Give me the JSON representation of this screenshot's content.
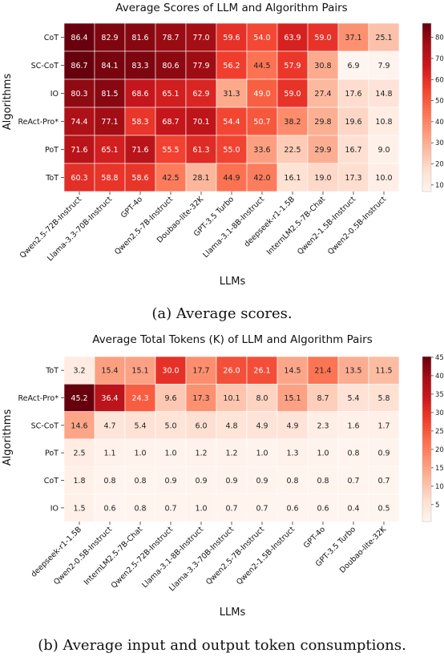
{
  "chart_data": [
    {
      "type": "heatmap",
      "title": "Average Scores of LLM and Algorithm Pairs",
      "xlabel": "LLMs",
      "ylabel": "Algorithms",
      "caption": "(a) Average scores.",
      "rows": [
        "CoT",
        "SC-CoT",
        "IO",
        "ReAct-Pro*",
        "PoT",
        "ToT"
      ],
      "columns": [
        "Qwen2.5-72B-Instruct",
        "Llama-3.3-70B-Instruct",
        "GPT-4o",
        "Qwen2.5-7B-Instruct",
        "Doubao-lite-32K",
        "GPT-3.5 Turbo",
        "Llama-3.1-8B-Instruct",
        "deepseek-r1-1.5B",
        "InternLM2.5-7B-Chat",
        "Qwen2-1.5B-Instruct",
        "Qwen2-0.5B-Instruct"
      ],
      "values": [
        [
          86.4,
          82.9,
          81.6,
          78.7,
          77.0,
          59.6,
          54.0,
          63.9,
          59.0,
          37.1,
          25.1
        ],
        [
          86.7,
          84.1,
          83.3,
          80.6,
          77.9,
          56.2,
          44.5,
          57.9,
          30.8,
          6.9,
          7.9
        ],
        [
          80.3,
          81.5,
          68.6,
          65.1,
          62.9,
          31.3,
          49.0,
          59.0,
          27.4,
          17.6,
          14.8
        ],
        [
          74.4,
          77.1,
          58.3,
          68.7,
          70.1,
          54.4,
          50.7,
          38.2,
          29.8,
          19.6,
          10.8
        ],
        [
          71.6,
          65.1,
          71.6,
          55.5,
          61.3,
          55.0,
          33.6,
          22.5,
          29.9,
          16.7,
          9.0
        ],
        [
          60.3,
          58.8,
          58.6,
          42.5,
          28.1,
          44.9,
          42.0,
          16.1,
          19.0,
          17.3,
          10.0
        ]
      ],
      "colorbar": {
        "min": 6.9,
        "max": 86.7,
        "ticks": [
          "10",
          "20",
          "30",
          "40",
          "50",
          "60",
          "70",
          "80"
        ],
        "tick_values": [
          10,
          20,
          30,
          40,
          50,
          60,
          70,
          80
        ]
      }
    },
    {
      "type": "heatmap",
      "title": "Average Total Tokens (K) of LLM and Algorithm Pairs",
      "xlabel": "LLMs",
      "ylabel": "Algorithms",
      "caption": "(b) Average input and output token consumptions.",
      "rows": [
        "ToT",
        "ReAct-Pro*",
        "SC-CoT",
        "PoT",
        "CoT",
        "IO"
      ],
      "columns": [
        "deepseek-r1-1.5B",
        "Qwen2-0.5B-Instruct",
        "InternLM2.5-7B-Chat",
        "Qwen2.5-72B-Instruct",
        "Llama-3.1-8B-Instruct",
        "Llama-3.3-70B-Instruct",
        "Qwen2.5-7B-Instruct",
        "Qwen2-1.5B-Instruct",
        "GPT-4o",
        "GPT-3.5 Turbo",
        "Doubao-lite-32K"
      ],
      "values": [
        [
          3.2,
          15.4,
          15.1,
          30.0,
          17.7,
          26.0,
          26.1,
          14.5,
          21.4,
          13.5,
          11.5
        ],
        [
          45.2,
          36.4,
          24.3,
          9.6,
          17.3,
          10.1,
          8.0,
          15.1,
          8.7,
          5.4,
          5.8
        ],
        [
          14.6,
          4.7,
          5.4,
          5.0,
          6.0,
          4.8,
          4.9,
          4.9,
          2.3,
          1.6,
          1.7
        ],
        [
          2.5,
          1.1,
          1.0,
          1.0,
          1.2,
          1.2,
          1.0,
          1.3,
          1.0,
          0.8,
          0.9
        ],
        [
          1.8,
          0.8,
          0.8,
          0.9,
          0.9,
          0.9,
          0.9,
          0.8,
          0.8,
          0.7,
          0.7
        ],
        [
          1.5,
          0.6,
          0.8,
          0.7,
          1.0,
          0.7,
          0.7,
          0.6,
          0.6,
          0.4,
          0.5
        ]
      ],
      "colorbar": {
        "min": 0.4,
        "max": 45.2,
        "ticks": [
          "5",
          "10",
          "15",
          "20",
          "25",
          "30",
          "35",
          "40",
          "45"
        ],
        "tick_values": [
          5,
          10,
          15,
          20,
          25,
          30,
          35,
          40,
          45
        ]
      }
    }
  ]
}
